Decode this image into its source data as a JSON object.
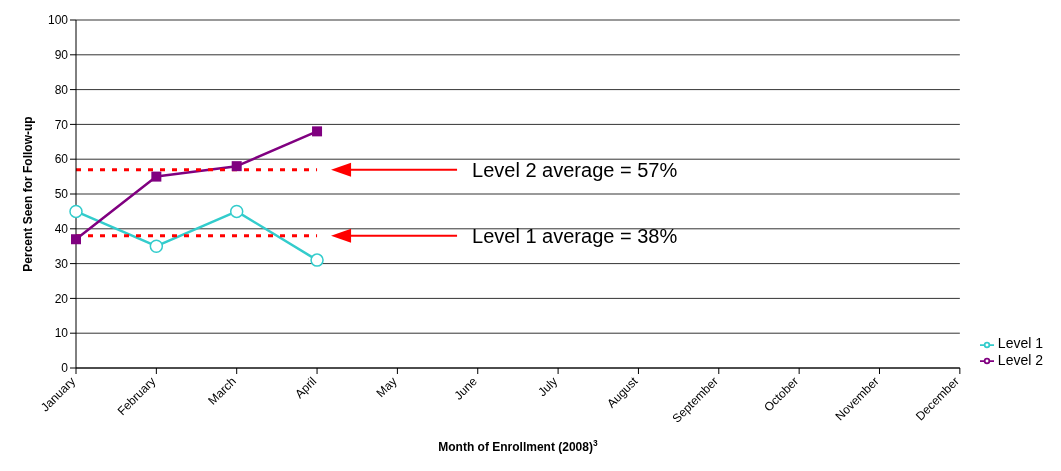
{
  "chart_data": {
    "type": "line",
    "xlabel": "Month of Enrollment (2008)$^{3}$",
    "ylabel": "Percent Seen for Follow-up",
    "categories": [
      "January",
      "February",
      "March",
      "April",
      "May",
      "June",
      "July",
      "August",
      "September",
      "October",
      "November",
      "December"
    ],
    "ylim": [
      0,
      100
    ],
    "yticks": [
      0,
      10,
      20,
      30,
      40,
      50,
      60,
      70,
      80,
      90,
      100
    ],
    "grid": "y",
    "legend": "bottom right",
    "series": [
      {
        "name": "Level 1",
        "color": "#33cccc",
        "marker": "circle",
        "values": [
          45,
          35,
          45,
          31,
          null,
          null,
          null,
          null,
          null,
          null,
          null,
          null
        ]
      },
      {
        "name": "Level 2",
        "color": "#800080",
        "marker": "square",
        "values": [
          37,
          55,
          58,
          68,
          null,
          null,
          null,
          null,
          null,
          null,
          null,
          null
        ]
      },
      {
        "color": "#ff0000",
        "line_style": "dotted",
        "marker": "none",
        "values": [
          57,
          57,
          57,
          57,
          null,
          null,
          null,
          null,
          null,
          null,
          null,
          null
        ]
      },
      {
        "color": "#ff0000",
        "line_style": "dotted",
        "marker": "none",
        "values": [
          38,
          38,
          38,
          38,
          null,
          null,
          null,
          null,
          null,
          null,
          null,
          null
        ]
      }
    ],
    "annotations": [
      "Level 2 average = 57%",
      "Level 1 average = 38%"
    ]
  }
}
